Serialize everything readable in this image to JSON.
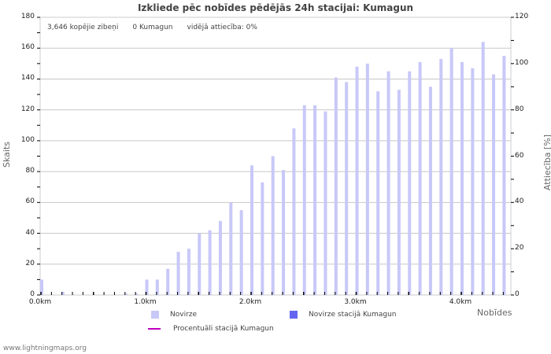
{
  "title": "Izkliede pēc nobīdes pēdējās 24h stacijai: Kumagun",
  "stats": {
    "total": "3,646 kopējie zibeņi",
    "station": "0 Kumagun",
    "ratio": "vidējā attiecība: 0%"
  },
  "axes": {
    "y_left_title": "Skaits",
    "y_right_title": "Attiecība [%]",
    "x_title": "Nobīdes"
  },
  "legend": {
    "deviation": "Novirze",
    "deviation_station": "Novirze stacijā Kumagun",
    "percent_station": "Procentuāli stacijā Kumagun"
  },
  "colors": {
    "bar": "#c8c8f8",
    "bar_station": "#6464f0",
    "line_percent": "#c000c0",
    "grid": "#c8c8c8"
  },
  "footer": "www.lightningmaps.org",
  "chart_data": {
    "type": "bar",
    "title": "Izkliede pēc nobīdes pēdējās 24h stacijai: Kumagun",
    "xlabel": "Nobīdes",
    "ylabel": "Skaits",
    "y2label": "Attiecība [%]",
    "ylim": [
      0,
      180
    ],
    "y2lim": [
      0,
      120
    ],
    "yticks": [
      0,
      20,
      40,
      60,
      80,
      100,
      120,
      140,
      160,
      180
    ],
    "y2ticks": [
      0,
      20,
      40,
      60,
      80,
      100,
      120
    ],
    "xticks": [
      "0.0km",
      "1.0km",
      "2.0km",
      "3.0km",
      "4.0km"
    ],
    "grid": true,
    "legend_position": "bottom",
    "categories": [
      0.0,
      0.1,
      0.2,
      0.3,
      0.4,
      0.5,
      0.6,
      0.7,
      0.8,
      0.9,
      1.0,
      1.1,
      1.2,
      1.3,
      1.4,
      1.5,
      1.6,
      1.7,
      1.8,
      1.9,
      2.0,
      2.1,
      2.2,
      2.3,
      2.4,
      2.5,
      2.6,
      2.7,
      2.8,
      2.9,
      3.0,
      3.1,
      3.2,
      3.3,
      3.4,
      3.5,
      3.6,
      3.7,
      3.8,
      3.9,
      4.0,
      4.1,
      4.2,
      4.3,
      4.4
    ],
    "series": [
      {
        "name": "Novirze",
        "values": [
          10,
          0,
          2,
          0,
          0,
          0,
          0,
          0,
          1,
          1,
          10,
          10,
          17,
          28,
          30,
          40,
          42,
          48,
          60,
          55,
          84,
          73,
          90,
          81,
          108,
          123,
          123,
          119,
          141,
          138,
          148,
          150,
          132,
          145,
          133,
          145,
          151,
          135,
          153,
          160,
          151,
          147,
          164,
          143,
          155
        ]
      },
      {
        "name": "Novirze stacijā Kumagun",
        "values": [
          0,
          0,
          0,
          0,
          0,
          0,
          0,
          0,
          0,
          0,
          0,
          0,
          0,
          0,
          0,
          0,
          0,
          0,
          0,
          0,
          0,
          0,
          0,
          0,
          0,
          0,
          0,
          0,
          0,
          0,
          0,
          0,
          0,
          0,
          0,
          0,
          0,
          0,
          0,
          0,
          0,
          0,
          0,
          0,
          0
        ]
      },
      {
        "name": "Procentuāli stacijā Kumagun",
        "values": [
          0,
          0,
          0,
          0,
          0,
          0,
          0,
          0,
          0,
          0,
          0,
          0,
          0,
          0,
          0,
          0,
          0,
          0,
          0,
          0,
          0,
          0,
          0,
          0,
          0,
          0,
          0,
          0,
          0,
          0,
          0,
          0,
          0,
          0,
          0,
          0,
          0,
          0,
          0,
          0,
          0,
          0,
          0,
          0,
          0
        ]
      }
    ]
  }
}
